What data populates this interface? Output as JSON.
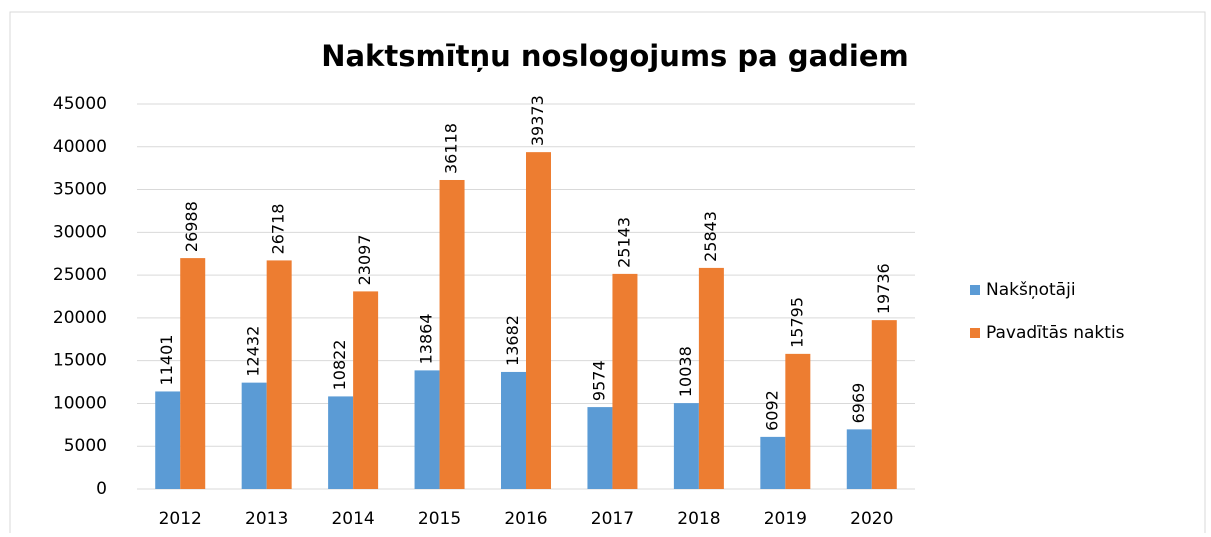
{
  "chart_data": {
    "type": "bar",
    "title": "Naktsmītņu noslogojums pa gadiem",
    "categories": [
      "2012",
      "2013",
      "2014",
      "2015",
      "2016",
      "2017",
      "2018",
      "2019",
      "2020"
    ],
    "series": [
      {
        "name": "Nakšņotāji",
        "color": "#5b9bd5",
        "values": [
          11401,
          12432,
          10822,
          13864,
          13682,
          9574,
          10038,
          6092,
          6969
        ]
      },
      {
        "name": "Pavadītās naktis",
        "color": "#ed7d31",
        "values": [
          26988,
          26718,
          23097,
          36118,
          39373,
          25143,
          25843,
          15795,
          19736
        ]
      }
    ],
    "ylim": [
      0,
      45000
    ],
    "yticks": [
      0,
      5000,
      10000,
      15000,
      20000,
      25000,
      30000,
      35000,
      40000,
      45000
    ],
    "grid": true,
    "legend": "right"
  }
}
